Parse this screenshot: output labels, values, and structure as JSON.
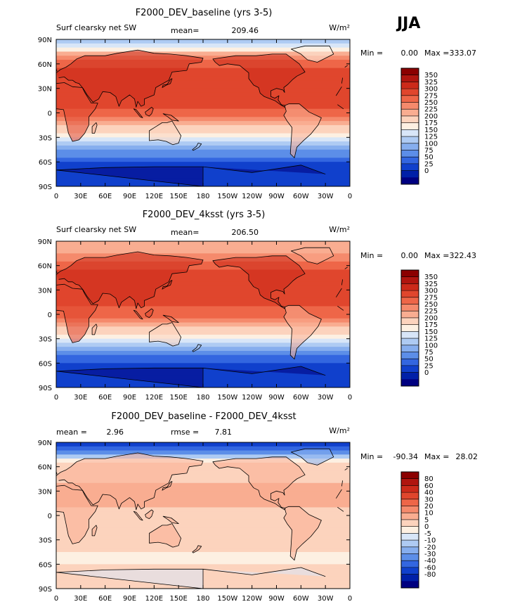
{
  "season": "JJA",
  "units_label": "W/m²",
  "x_ticks": [
    "0",
    "30E",
    "60E",
    "90E",
    "120E",
    "150E",
    "180",
    "150W",
    "120W",
    "90W",
    "60W",
    "30W",
    "0"
  ],
  "y_ticks": [
    "90N",
    "60N",
    "30N",
    "0",
    "30S",
    "60S",
    "90S"
  ],
  "palette": {
    "ocean_tone": "#e8502e",
    "land_tone": "#f07a55",
    "coast": "#000000"
  },
  "chart_data": [
    {
      "type": "heatmap",
      "title": "F2000_DEV_baseline (yrs 3-5)",
      "variable_label": "Surf clearsky net SW",
      "stat1_label": "mean=",
      "stat1_value": "209.46",
      "stat2_label": "",
      "stat2_value": "",
      "min_label": "Min =",
      "min_value": "0.00",
      "max_label": "Max =",
      "max_value": "333.07",
      "xlim": [
        0,
        360
      ],
      "ylim": [
        -90,
        90
      ],
      "colorbar": {
        "levels": [
          "350",
          "325",
          "300",
          "275",
          "250",
          "225",
          "200",
          "175",
          "150",
          "125",
          "100",
          "75",
          "50",
          "25",
          "0"
        ],
        "colors": [
          "#8b0000",
          "#b0150f",
          "#cc2a1a",
          "#e0462d",
          "#ee6648",
          "#f58a6c",
          "#f9ad91",
          "#fcd3bd",
          "#fdf0e2",
          "#d8e6f8",
          "#aecbf3",
          "#86aeee",
          "#5c8ee8",
          "#3366e0",
          "#1040cc",
          "#0020a8",
          "#000080"
        ]
      },
      "zonal_profile": [
        {
          "lat": 90,
          "value": 110
        },
        {
          "lat": 80,
          "value": 140
        },
        {
          "lat": 70,
          "value": 225
        },
        {
          "lat": 60,
          "value": 262
        },
        {
          "lat": 50,
          "value": 285
        },
        {
          "lat": 40,
          "value": 300
        },
        {
          "lat": 30,
          "value": 300
        },
        {
          "lat": 20,
          "value": 292
        },
        {
          "lat": 10,
          "value": 282
        },
        {
          "lat": 0,
          "value": 262
        },
        {
          "lat": -10,
          "value": 230
        },
        {
          "lat": -20,
          "value": 190
        },
        {
          "lat": -30,
          "value": 150
        },
        {
          "lat": -40,
          "value": 100
        },
        {
          "lat": -50,
          "value": 60
        },
        {
          "lat": -60,
          "value": 22
        },
        {
          "lat": -70,
          "value": 5
        },
        {
          "lat": -90,
          "value": 0
        }
      ],
      "land_offset": 15
    },
    {
      "type": "heatmap",
      "title": "F2000_DEV_4ksst (yrs 3-5)",
      "variable_label": "Surf clearsky net SW",
      "stat1_label": "mean=",
      "stat1_value": "206.50",
      "stat2_label": "",
      "stat2_value": "",
      "min_label": "Min =",
      "min_value": "0.00",
      "max_label": "Max =",
      "max_value": "322.43",
      "xlim": [
        0,
        360
      ],
      "ylim": [
        -90,
        90
      ],
      "colorbar": {
        "levels": [
          "350",
          "325",
          "300",
          "275",
          "250",
          "225",
          "200",
          "175",
          "150",
          "125",
          "100",
          "75",
          "50",
          "25",
          "0"
        ],
        "colors": [
          "#8b0000",
          "#b0150f",
          "#cc2a1a",
          "#e0462d",
          "#ee6648",
          "#f58a6c",
          "#f9ad91",
          "#fcd3bd",
          "#fdf0e2",
          "#d8e6f8",
          "#aecbf3",
          "#86aeee",
          "#5c8ee8",
          "#3366e0",
          "#1040cc",
          "#0020a8",
          "#000080"
        ]
      },
      "zonal_profile": [
        {
          "lat": 90,
          "value": 200
        },
        {
          "lat": 80,
          "value": 215
        },
        {
          "lat": 70,
          "value": 240
        },
        {
          "lat": 60,
          "value": 265
        },
        {
          "lat": 50,
          "value": 285
        },
        {
          "lat": 40,
          "value": 298
        },
        {
          "lat": 30,
          "value": 300
        },
        {
          "lat": 20,
          "value": 292
        },
        {
          "lat": 10,
          "value": 280
        },
        {
          "lat": 0,
          "value": 258
        },
        {
          "lat": -10,
          "value": 228
        },
        {
          "lat": -20,
          "value": 188
        },
        {
          "lat": -30,
          "value": 148
        },
        {
          "lat": -40,
          "value": 98
        },
        {
          "lat": -50,
          "value": 58
        },
        {
          "lat": -60,
          "value": 22
        },
        {
          "lat": -70,
          "value": 5
        },
        {
          "lat": -90,
          "value": 0
        }
      ],
      "land_offset": 15
    },
    {
      "type": "heatmap",
      "title": "F2000_DEV_baseline - F2000_DEV_4ksst",
      "variable_label": "",
      "stat1_label": "mean =",
      "stat1_value": "2.96",
      "stat2_label": "rmse =",
      "stat2_value": "7.81",
      "min_label": "Min =",
      "min_value": "-90.34",
      "max_label": "Max =",
      "max_value": "28.02",
      "xlim": [
        0,
        360
      ],
      "ylim": [
        -90,
        90
      ],
      "colorbar": {
        "levels": [
          "80",
          "60",
          "40",
          "30",
          "20",
          "10",
          "5",
          "0",
          "-5",
          "-10",
          "-20",
          "-30",
          "-40",
          "-60",
          "-80"
        ],
        "colors": [
          "#8b0000",
          "#b0150f",
          "#cc2a1a",
          "#e0462d",
          "#ee6648",
          "#f58a6c",
          "#f9ad91",
          "#fcd3bd",
          "#fdf0e2",
          "#d8e6f8",
          "#aecbf3",
          "#86aeee",
          "#5c8ee8",
          "#3366e0",
          "#1040cc",
          "#0020a8",
          "#000080"
        ]
      },
      "zonal_profile": [
        {
          "lat": 90,
          "value": -70
        },
        {
          "lat": 80,
          "value": -45
        },
        {
          "lat": 72,
          "value": -15
        },
        {
          "lat": 65,
          "value": 2
        },
        {
          "lat": 55,
          "value": 4
        },
        {
          "lat": 40,
          "value": 5
        },
        {
          "lat": 20,
          "value": 6
        },
        {
          "lat": 0,
          "value": 4
        },
        {
          "lat": -20,
          "value": 3
        },
        {
          "lat": -40,
          "value": 2
        },
        {
          "lat": -55,
          "value": -3
        },
        {
          "lat": -62,
          "value": 2
        },
        {
          "lat": -70,
          "value": 1
        },
        {
          "lat": -90,
          "value": 0
        }
      ],
      "land_offset": 4
    }
  ]
}
